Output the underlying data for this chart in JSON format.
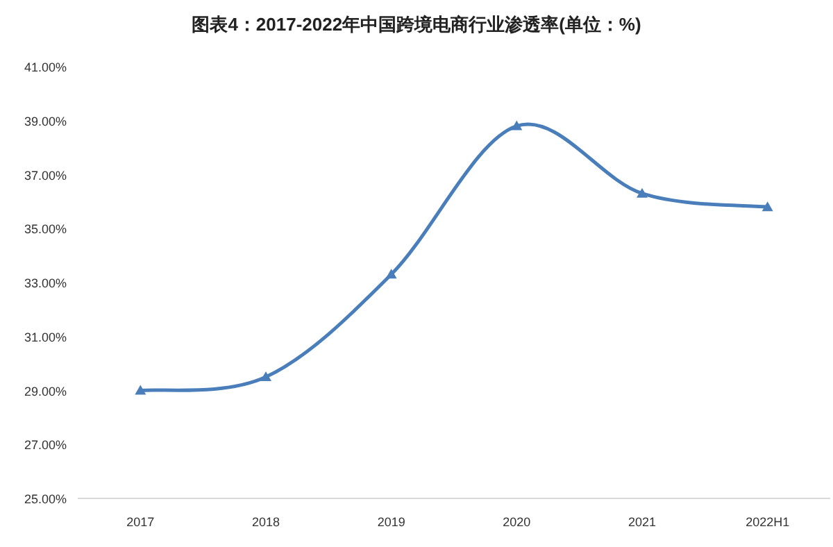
{
  "chart_data": {
    "type": "line",
    "title": "图表4：2017-2022年中国跨境电商行业渗透率(单位：%)",
    "categories": [
      "2017",
      "2018",
      "2019",
      "2020",
      "2021",
      "2022H1"
    ],
    "series": [
      {
        "color": "#4a7ebb",
        "values": [
          29.0,
          29.5,
          33.3,
          38.8,
          36.3,
          35.8
        ]
      }
    ],
    "ylim": [
      25,
      41
    ],
    "yticks": [
      {
        "value": 25,
        "label": "25.00%"
      },
      {
        "value": 27,
        "label": "27.00%"
      },
      {
        "value": 29,
        "label": "29.00%"
      },
      {
        "value": 31,
        "label": "31.00%"
      },
      {
        "value": 33,
        "label": "33.00%"
      },
      {
        "value": 35,
        "label": "35.00%"
      },
      {
        "value": 37,
        "label": "37.00%"
      },
      {
        "value": 39,
        "label": "39.00%"
      },
      {
        "value": 41,
        "label": "41.00%"
      }
    ],
    "marker": "triangle",
    "grid": false
  }
}
